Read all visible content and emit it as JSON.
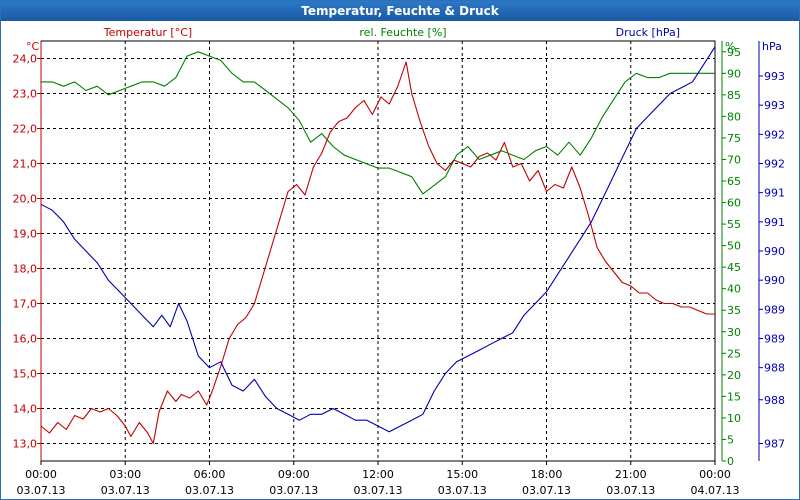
{
  "window": {
    "title": "Temperatur, Feuchte & Druck"
  },
  "colors": {
    "temperature": "#c00000",
    "humidity": "#008000",
    "pressure": "#0000b0",
    "grid": "#000000",
    "title_bg": "#1f64b0"
  },
  "chart_data": {
    "type": "line",
    "title": "Temperatur, Feuchte & Druck",
    "x_unit": "hours since 03.07.13 00:00",
    "xlim": [
      0,
      24
    ],
    "x_ticks": [
      {
        "t": 0,
        "time": "00:00",
        "date": "03.07.13"
      },
      {
        "t": 3,
        "time": "03:00",
        "date": "03.07.13"
      },
      {
        "t": 6,
        "time": "06:00",
        "date": "03.07.13"
      },
      {
        "t": 9,
        "time": "09:00",
        "date": "03.07.13"
      },
      {
        "t": 12,
        "time": "12:00",
        "date": "03.07.13"
      },
      {
        "t": 15,
        "time": "15:00",
        "date": "03.07.13"
      },
      {
        "t": 18,
        "time": "18:00",
        "date": "03.07.13"
      },
      {
        "t": 21,
        "time": "21:00",
        "date": "03.07.13"
      },
      {
        "t": 24,
        "time": "00:00",
        "date": "04.07.13"
      }
    ],
    "axes": {
      "left": {
        "unit": "°C",
        "min": 12.5,
        "max": 24.5,
        "ticks": [
          "13,0",
          "14,0",
          "15,0",
          "16,0",
          "17,0",
          "18,0",
          "19,0",
          "20,0",
          "21,0",
          "22,0",
          "23,0",
          "24,0"
        ],
        "tick_values": [
          13,
          14,
          15,
          16,
          17,
          18,
          19,
          20,
          21,
          22,
          23,
          24
        ]
      },
      "middle": {
        "unit": "%",
        "min": 0,
        "max": 97.5,
        "ticks": [
          "0",
          "5",
          "10",
          "15",
          "20",
          "25",
          "30",
          "35",
          "40",
          "45",
          "50",
          "55",
          "60",
          "65",
          "70",
          "75",
          "80",
          "85",
          "90",
          "95"
        ],
        "tick_values": [
          0,
          5,
          10,
          15,
          20,
          25,
          30,
          35,
          40,
          45,
          50,
          55,
          60,
          65,
          70,
          75,
          80,
          85,
          90,
          95
        ]
      },
      "right": {
        "unit": "hPa",
        "min": 986.7,
        "max": 993.9,
        "ticks": [
          "987",
          "988",
          "988",
          "989",
          "989",
          "990",
          "990",
          "991",
          "991",
          "992",
          "992",
          "993",
          "993"
        ],
        "tick_values": [
          987,
          987.75,
          988.3,
          988.8,
          989.3,
          989.8,
          990.3,
          990.8,
          991.3,
          991.8,
          992.3,
          992.8,
          993.3
        ]
      }
    },
    "series": [
      {
        "name": "Temperatur [°C]",
        "axis": "left",
        "color": "#c00000",
        "t": [
          0,
          0.3,
          0.6,
          0.9,
          1.2,
          1.5,
          1.8,
          2.1,
          2.4,
          2.7,
          3.0,
          3.2,
          3.5,
          3.8,
          4.0,
          4.2,
          4.5,
          4.8,
          5.0,
          5.3,
          5.6,
          5.9,
          6.1,
          6.4,
          6.7,
          7.0,
          7.3,
          7.6,
          7.9,
          8.2,
          8.5,
          8.8,
          9.1,
          9.4,
          9.7,
          10.0,
          10.3,
          10.6,
          10.9,
          11.2,
          11.5,
          11.8,
          12.1,
          12.4,
          12.7,
          13.0,
          13.2,
          13.5,
          13.8,
          14.1,
          14.4,
          14.7,
          15.0,
          15.3,
          15.6,
          15.9,
          16.2,
          16.5,
          16.8,
          17.1,
          17.4,
          17.7,
          18.0,
          18.3,
          18.6,
          18.9,
          19.2,
          19.5,
          19.8,
          20.1,
          20.4,
          20.7,
          21.0,
          21.3,
          21.6,
          21.9,
          22.2,
          22.5,
          22.8,
          23.1,
          23.4,
          23.7,
          24.0
        ],
        "values": [
          13.5,
          13.3,
          13.6,
          13.4,
          13.8,
          13.7,
          14.0,
          13.9,
          14.0,
          13.8,
          13.5,
          13.2,
          13.6,
          13.3,
          13.0,
          13.9,
          14.5,
          14.2,
          14.4,
          14.3,
          14.5,
          14.1,
          14.5,
          15.2,
          16.0,
          16.4,
          16.6,
          17.0,
          17.8,
          18.6,
          19.4,
          20.2,
          20.4,
          20.1,
          20.9,
          21.3,
          21.9,
          22.2,
          22.3,
          22.6,
          22.8,
          22.4,
          22.9,
          22.7,
          23.2,
          23.9,
          23.0,
          22.2,
          21.5,
          21.0,
          20.8,
          21.1,
          21.0,
          20.9,
          21.2,
          21.3,
          21.1,
          21.6,
          20.9,
          21.0,
          20.5,
          20.8,
          20.2,
          20.4,
          20.3,
          20.9,
          20.3,
          19.5,
          18.6,
          18.2,
          17.9,
          17.6,
          17.5,
          17.3,
          17.3,
          17.1,
          17.0,
          17.0,
          16.9,
          16.9,
          16.8,
          16.7,
          16.7
        ]
      },
      {
        "name": "rel. Feuchte [%]",
        "axis": "middle",
        "color": "#008000",
        "t": [
          0,
          0.4,
          0.8,
          1.2,
          1.6,
          2.0,
          2.4,
          2.8,
          3.2,
          3.6,
          4.0,
          4.4,
          4.8,
          5.2,
          5.6,
          6.0,
          6.4,
          6.8,
          7.2,
          7.6,
          8.0,
          8.4,
          8.8,
          9.2,
          9.6,
          10.0,
          10.4,
          10.8,
          11.2,
          11.6,
          12.0,
          12.4,
          12.8,
          13.2,
          13.6,
          14.0,
          14.4,
          14.8,
          15.2,
          15.6,
          16.0,
          16.4,
          16.8,
          17.2,
          17.6,
          18.0,
          18.4,
          18.8,
          19.2,
          19.6,
          20.0,
          20.4,
          20.8,
          21.2,
          21.6,
          22.0,
          22.4,
          22.8,
          23.2,
          23.6,
          24.0
        ],
        "values": [
          88,
          88,
          87,
          88,
          86,
          87,
          85,
          86,
          87,
          88,
          88,
          87,
          89,
          94,
          95,
          94,
          93,
          90,
          88,
          88,
          86,
          84,
          82,
          79,
          74,
          76,
          73,
          71,
          70,
          69,
          68,
          68,
          67,
          66,
          62,
          64,
          66,
          71,
          73,
          70,
          71,
          72,
          71,
          70,
          72,
          73,
          71,
          74,
          71,
          75,
          80,
          84,
          88,
          90,
          89,
          89,
          90,
          90,
          90,
          90,
          90
        ]
      },
      {
        "name": "Druck [hPa]",
        "axis": "right",
        "color": "#0000b0",
        "t": [
          0,
          0.4,
          0.8,
          1.2,
          1.6,
          2.0,
          2.4,
          2.8,
          3.2,
          3.6,
          4.0,
          4.3,
          4.6,
          4.9,
          5.2,
          5.6,
          6.0,
          6.4,
          6.8,
          7.2,
          7.6,
          8.0,
          8.4,
          8.8,
          9.2,
          9.6,
          10.0,
          10.4,
          10.8,
          11.2,
          11.6,
          12.0,
          12.4,
          12.8,
          13.2,
          13.6,
          14.0,
          14.4,
          14.8,
          15.2,
          15.6,
          16.0,
          16.4,
          16.8,
          17.2,
          17.6,
          18.0,
          18.4,
          18.8,
          19.2,
          19.6,
          20.0,
          20.4,
          20.8,
          21.2,
          21.6,
          22.0,
          22.4,
          22.8,
          23.2,
          23.6,
          24.0
        ],
        "values": [
          991.1,
          991.0,
          990.8,
          990.5,
          990.3,
          990.1,
          989.8,
          989.6,
          989.4,
          989.2,
          989.0,
          989.2,
          989.0,
          989.4,
          989.1,
          988.5,
          988.3,
          988.4,
          988.0,
          987.9,
          988.1,
          987.8,
          987.6,
          987.5,
          987.4,
          987.5,
          987.5,
          987.6,
          987.5,
          987.4,
          987.4,
          987.3,
          987.2,
          987.3,
          987.4,
          987.5,
          987.9,
          988.2,
          988.4,
          988.5,
          988.6,
          988.7,
          988.8,
          988.9,
          989.2,
          989.4,
          989.6,
          989.9,
          990.2,
          990.5,
          990.8,
          991.2,
          991.6,
          992.0,
          992.4,
          992.6,
          992.8,
          993.0,
          993.1,
          993.2,
          993.5,
          993.8
        ]
      }
    ]
  }
}
